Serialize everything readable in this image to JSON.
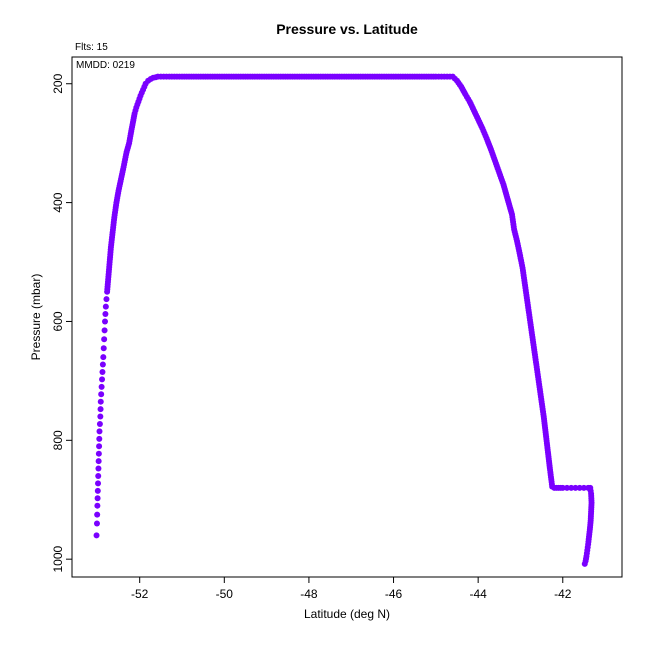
{
  "chart_data": {
    "type": "scatter",
    "title": "Pressure vs. Latitude",
    "xlabel": "Latitude (deg N)",
    "ylabel": "Pressure (mbar)",
    "xlim": [
      -53.6,
      -40.6
    ],
    "ylim": [
      1030,
      155
    ],
    "y_inverted": true,
    "xticks": [
      -52,
      -50,
      -48,
      -46,
      -44,
      -42
    ],
    "yticks": [
      200,
      400,
      600,
      800,
      1000
    ],
    "grid": false,
    "annotations": [
      "Flts: 15",
      "MMDD: 0219"
    ],
    "point_color": "#7a00ff",
    "series": [
      {
        "x": [
          -53.02,
          -53.01,
          -53.0,
          -52.99,
          -52.98,
          -52.97,
          -52.96,
          -52.95,
          -52.93,
          -52.92,
          -52.9,
          -52.88,
          -52.86,
          -52.84,
          -52.82,
          -52.8,
          -52.77,
          -52.74,
          -52.71,
          -52.68,
          -52.64,
          -52.6,
          -52.55,
          -52.5,
          -52.44,
          -52.38,
          -52.31,
          -52.25,
          -52.2,
          -52.16,
          -52.12,
          -52.08,
          -52.03,
          -51.98,
          -51.92,
          -51.86,
          -51.8,
          -51.74,
          -51.68,
          -51.62,
          -51.57,
          -51.5,
          -51.3,
          -51.0,
          -50.5,
          -50.0,
          -49.5,
          -49.0,
          -48.5,
          -48.0,
          -47.5,
          -47.0,
          -46.5,
          -46.0,
          -45.5,
          -45.0,
          -44.8,
          -44.6,
          -44.5,
          -44.4,
          -44.3,
          -44.2,
          -44.1,
          -44.0,
          -43.9,
          -43.8,
          -43.7,
          -43.6,
          -43.5,
          -43.4,
          -43.3,
          -43.2,
          -43.15,
          -43.08,
          -43.02,
          -42.95,
          -42.9,
          -42.85,
          -42.8,
          -42.75,
          -42.7,
          -42.65,
          -42.6,
          -42.55,
          -42.5,
          -42.45,
          -42.4,
          -42.35,
          -42.3,
          -42.25,
          -42.2,
          -42.15,
          -42.1,
          -42.05,
          -42.0,
          -41.9,
          -41.8,
          -41.7,
          -41.6,
          -41.5,
          -41.4,
          -41.35,
          -41.33,
          -41.32,
          -41.33,
          -41.34,
          -41.36,
          -41.38,
          -41.4,
          -41.42,
          -41.44,
          -41.46,
          -41.48
        ],
        "y": [
          960,
          940,
          910,
          885,
          860,
          835,
          810,
          785,
          760,
          735,
          710,
          685,
          660,
          630,
          600,
          575,
          550,
          525,
          500,
          475,
          450,
          425,
          400,
          380,
          360,
          340,
          315,
          300,
          280,
          265,
          250,
          240,
          230,
          220,
          210,
          200,
          195,
          192,
          190,
          189,
          188,
          188,
          188,
          188,
          188,
          188,
          188,
          188,
          188,
          188,
          188,
          188,
          188,
          188,
          188,
          188,
          188,
          188,
          195,
          205,
          218,
          230,
          245,
          260,
          275,
          292,
          310,
          330,
          350,
          370,
          395,
          420,
          445,
          465,
          485,
          510,
          535,
          560,
          585,
          610,
          635,
          660,
          685,
          710,
          735,
          760,
          790,
          820,
          850,
          878,
          880,
          880,
          880,
          880,
          880,
          880,
          880,
          880,
          880,
          880,
          880,
          880,
          890,
          905,
          920,
          935,
          950,
          962,
          975,
          985,
          995,
          1003,
          1008
        ]
      }
    ]
  }
}
